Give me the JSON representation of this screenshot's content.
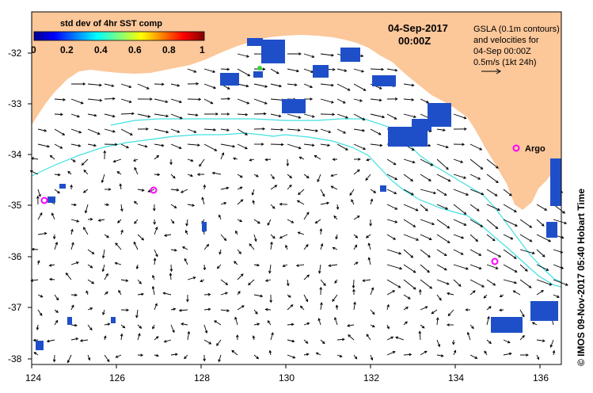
{
  "map": {
    "date_label": "04-Sep-2017",
    "time_label": "00:00Z",
    "colorbar": {
      "title": "std dev of 4hr SST comp",
      "ticks": [
        "0",
        "0.2",
        "0.4",
        "0.6",
        "0.8",
        "1"
      ]
    },
    "legend": {
      "line1": "GSLA (0.1m contours)",
      "line2": "and velocities for",
      "line3": "04-Sep 00:00Z",
      "line4": "0.5m/s (1kt 24h)"
    },
    "argo_label": "Argo",
    "credit": "© IMOS 09-Nov-2017 05:40 Hobart Time",
    "x_ticks": [
      "124",
      "126",
      "128",
      "130",
      "132",
      "134",
      "136"
    ],
    "y_ticks": [
      "-32",
      "-33",
      "-34",
      "-35",
      "-36",
      "-37",
      "-38"
    ],
    "colors": {
      "land": "#fcc799",
      "ocean": "#ffffff",
      "contour": "#40e0e0",
      "argo": "#ff00ff",
      "sst_patch": "#1f4fc8"
    }
  }
}
